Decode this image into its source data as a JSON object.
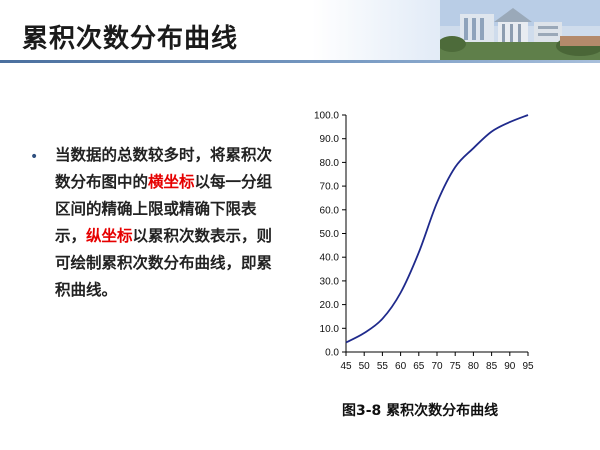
{
  "slide": {
    "title": "累积次数分布曲线",
    "bullet_symbol": "•",
    "body": {
      "part1": "当数据的总数较多时，将累积次数分布图中的",
      "highlight1": "横坐标",
      "part2": "以每一分组区间的精确上限或精确下限表示，",
      "highlight2": "纵坐标",
      "part3": "以累积次数表示，则可绘制累积次数分布曲线，即累积曲线。"
    },
    "highlight_color": "#e60000",
    "caption": "图3-8  累积次数分布曲线"
  },
  "chart_data": {
    "type": "line",
    "title": "",
    "xlabel": "",
    "ylabel": "",
    "x": [
      45,
      50,
      55,
      60,
      65,
      70,
      75,
      80,
      85,
      90,
      95
    ],
    "x_tick_labels": [
      "45",
      "50",
      "55",
      "60",
      "65",
      "70",
      "75",
      "80",
      "85",
      "90",
      "95"
    ],
    "y_tick_labels": [
      "0.0",
      "10.0",
      "20.0",
      "30.0",
      "40.0",
      "50.0",
      "60.0",
      "70.0",
      "80.0",
      "90.0",
      "100.0"
    ],
    "xlim": [
      45,
      95
    ],
    "ylim": [
      0,
      100
    ],
    "series": [
      {
        "values": [
          4,
          8,
          14,
          25,
          42,
          63,
          78,
          86,
          93,
          97,
          100
        ],
        "color": "#1f2a8c"
      }
    ],
    "grid": false,
    "legend": "none"
  }
}
